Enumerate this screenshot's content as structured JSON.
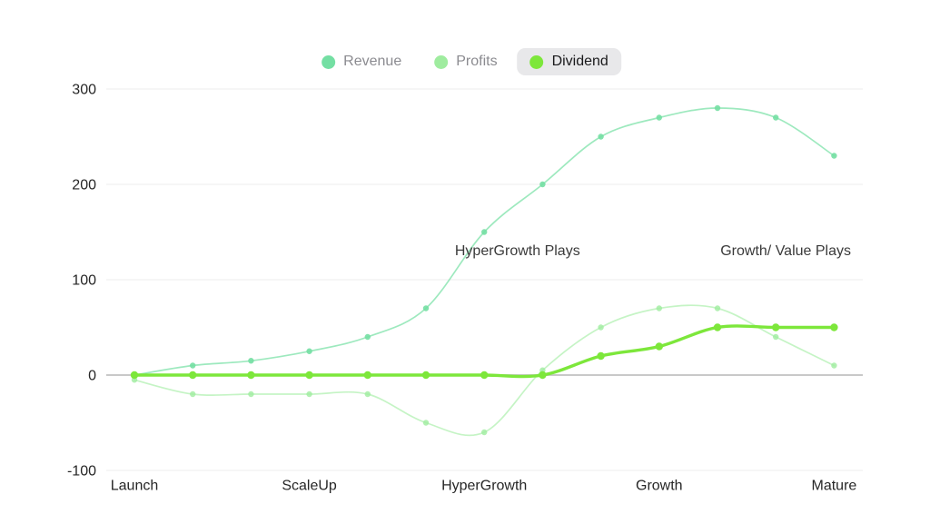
{
  "colors": {
    "background": "#ffffff",
    "gridline": "#ececec",
    "zero_line": "#c9c9c9",
    "tick_text": "#262626",
    "annotation_text": "#3a3a3a",
    "legend_text": "#8b8b90",
    "legend_active_text": "#1a1a1c",
    "legend_active_bg": "#e8e8ea"
  },
  "legend": {
    "items": [
      {
        "label": "Revenue",
        "color": "#74dfa3",
        "active": false
      },
      {
        "label": "Profits",
        "color": "#9fec9f",
        "active": false
      },
      {
        "label": "Dividend",
        "color": "#7de73b",
        "active": true
      }
    ]
  },
  "chart_data": {
    "type": "line",
    "title": "",
    "xlabel": "",
    "ylabel": "",
    "grid": true,
    "legend_position": "top-center",
    "x_axis": {
      "categories": [
        "Launch",
        "ScaleUp",
        "HyperGrowth",
        "Growth",
        "Mature"
      ],
      "points_per_segment": 3,
      "point_count": 13
    },
    "y_axis": {
      "ticks": [
        300,
        200,
        100,
        0,
        -100
      ],
      "min": -100,
      "max": 300
    },
    "series": [
      {
        "name": "Revenue",
        "color": "#74dfa3",
        "line_width": 1.7,
        "line_opacity": 0.7,
        "dot_radius": 3.2,
        "values": [
          0,
          10,
          15,
          25,
          40,
          70,
          150,
          200,
          250,
          270,
          280,
          270,
          230
        ]
      },
      {
        "name": "Profits",
        "color": "#9fec9f",
        "line_width": 1.7,
        "line_opacity": 0.6,
        "dot_radius": 3.2,
        "values": [
          -5,
          -20,
          -20,
          -20,
          -20,
          -50,
          -60,
          5,
          50,
          70,
          70,
          40,
          10
        ]
      },
      {
        "name": "Dividend",
        "color": "#7de73b",
        "line_width": 3.4,
        "line_opacity": 1,
        "dot_radius": 4.2,
        "values": [
          0,
          0,
          0,
          0,
          0,
          0,
          0,
          0,
          20,
          30,
          50,
          50,
          50
        ]
      }
    ],
    "annotations": [
      {
        "text": "HyperGrowth Plays",
        "x_index": 6.57,
        "y_value": 130
      },
      {
        "text": "Growth/ Value Plays",
        "x_index": 11.17,
        "y_value": 130
      }
    ]
  }
}
